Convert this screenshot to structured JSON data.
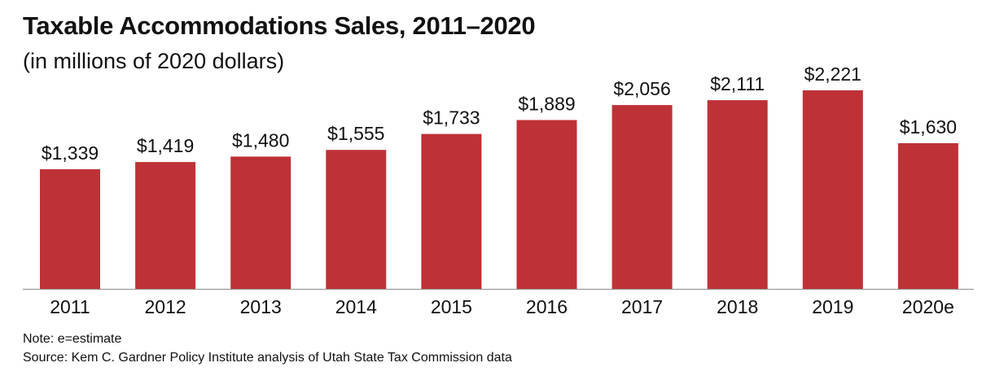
{
  "header": {
    "title": "Taxable Accommodations Sales, 2011–2020",
    "subtitle": "(in millions of 2020 dollars)"
  },
  "footer": {
    "note": "Note: e=estimate",
    "source": "Source: Kem C. Gardner Policy Institute analysis of Utah State Tax Commission data"
  },
  "colors": {
    "bar": "#BE3237",
    "axis": "#9a9a9a"
  },
  "chart_data": {
    "type": "bar",
    "title": "Taxable Accommodations Sales, 2011–2020",
    "subtitle": "(in millions of 2020 dollars)",
    "xlabel": "",
    "ylabel": "",
    "categories": [
      "2011",
      "2012",
      "2013",
      "2014",
      "2015",
      "2016",
      "2017",
      "2018",
      "2019",
      "2020e"
    ],
    "values": [
      1339,
      1419,
      1480,
      1555,
      1733,
      1889,
      2056,
      2111,
      2221,
      1630
    ],
    "data_labels": [
      "$1,339",
      "$1,419",
      "$1,480",
      "$1,555",
      "$1,733",
      "$1,889",
      "$2,056",
      "$2,111",
      "$2,221",
      "$1,630"
    ],
    "ylim": [
      0,
      2221
    ],
    "grid": false,
    "legend": "none"
  }
}
